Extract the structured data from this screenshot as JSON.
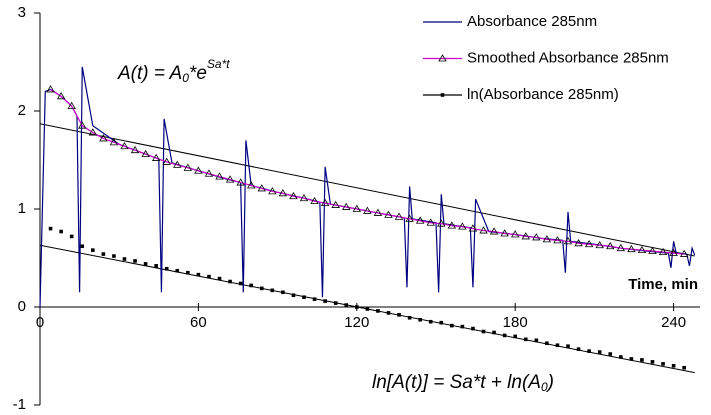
{
  "chart_data": {
    "type": "line",
    "xlabel": "Time, min",
    "xlim": [
      0,
      250
    ],
    "xticks": [
      0,
      60,
      120,
      180,
      240
    ],
    "ylim": [
      -1,
      3
    ],
    "yticks": [
      -1,
      0,
      1,
      2,
      3
    ],
    "legend": "top-right",
    "annotations": [
      {
        "text": "A(t) = A",
        "sub": "0",
        "text2": "*e",
        "sup": "Sa*t"
      },
      {
        "text": "ln[A(t)] = Sa*t + ln(A",
        "sub": "0",
        "text2": ")"
      }
    ],
    "series": [
      {
        "name": "Absorbance 285nm",
        "color": "#000080",
        "marker": "none",
        "x": [
          0,
          2,
          4,
          8,
          12,
          14,
          15,
          16,
          20,
          30,
          40,
          45,
          46,
          47,
          50,
          60,
          70,
          76,
          77,
          78,
          80,
          90,
          100,
          106,
          107,
          108,
          110,
          120,
          130,
          138,
          139,
          140,
          141,
          150,
          151,
          152,
          153,
          160,
          163,
          164,
          165,
          170,
          180,
          190,
          198,
          199,
          200,
          201,
          210,
          220,
          230,
          238,
          239,
          240,
          241,
          245,
          246,
          247,
          248
        ],
        "values": [
          0,
          2.2,
          2.22,
          2.15,
          2.05,
          1.95,
          0.15,
          2.45,
          1.85,
          1.66,
          1.56,
          1.51,
          0.15,
          1.92,
          1.47,
          1.39,
          1.31,
          1.27,
          0.15,
          1.7,
          1.24,
          1.17,
          1.11,
          1.07,
          0.1,
          1.43,
          1.05,
          1.0,
          0.95,
          0.91,
          0.2,
          1.23,
          0.9,
          0.86,
          0.15,
          1.15,
          0.85,
          0.82,
          0.81,
          0.2,
          1.1,
          0.77,
          0.74,
          0.7,
          0.68,
          0.35,
          0.97,
          0.67,
          0.64,
          0.6,
          0.57,
          0.55,
          0.4,
          0.67,
          0.55,
          0.54,
          0.42,
          0.6,
          0.53
        ]
      },
      {
        "name": "Smoothed Absorbance 285nm",
        "color": "#cc00cc",
        "marker": "triangle",
        "x": [
          4,
          8,
          12,
          16,
          20,
          24,
          28,
          32,
          36,
          40,
          44,
          48,
          52,
          56,
          60,
          64,
          68,
          72,
          76,
          80,
          84,
          88,
          92,
          96,
          100,
          104,
          108,
          112,
          116,
          120,
          124,
          128,
          132,
          136,
          140,
          144,
          148,
          152,
          156,
          160,
          164,
          168,
          172,
          176,
          180,
          184,
          188,
          192,
          196,
          200,
          204,
          208,
          212,
          216,
          220,
          224,
          228,
          232,
          236,
          240,
          244
        ],
        "values": [
          2.22,
          2.15,
          2.05,
          1.85,
          1.78,
          1.72,
          1.68,
          1.64,
          1.6,
          1.56,
          1.52,
          1.48,
          1.45,
          1.42,
          1.39,
          1.36,
          1.33,
          1.3,
          1.27,
          1.24,
          1.21,
          1.18,
          1.16,
          1.13,
          1.11,
          1.08,
          1.06,
          1.04,
          1.02,
          1.0,
          0.98,
          0.96,
          0.94,
          0.92,
          0.9,
          0.88,
          0.86,
          0.85,
          0.83,
          0.82,
          0.8,
          0.78,
          0.77,
          0.75,
          0.74,
          0.72,
          0.71,
          0.69,
          0.68,
          0.67,
          0.65,
          0.64,
          0.63,
          0.62,
          0.6,
          0.59,
          0.58,
          0.57,
          0.56,
          0.55,
          0.54
        ]
      },
      {
        "name": "ln(Absorbance 285nm)",
        "color": "#000000",
        "marker": "square",
        "x": [
          4,
          8,
          12,
          16,
          20,
          24,
          28,
          32,
          36,
          40,
          44,
          48,
          52,
          56,
          60,
          64,
          68,
          72,
          76,
          80,
          84,
          88,
          92,
          96,
          100,
          104,
          108,
          112,
          116,
          120,
          124,
          128,
          132,
          136,
          140,
          144,
          148,
          152,
          156,
          160,
          164,
          168,
          172,
          176,
          180,
          184,
          188,
          192,
          196,
          200,
          204,
          208,
          212,
          216,
          220,
          224,
          228,
          232,
          236,
          240,
          244
        ],
        "values": [
          0.8,
          0.77,
          0.72,
          0.62,
          0.58,
          0.54,
          0.52,
          0.49,
          0.47,
          0.44,
          0.42,
          0.39,
          0.37,
          0.35,
          0.33,
          0.31,
          0.29,
          0.26,
          0.24,
          0.22,
          0.19,
          0.17,
          0.15,
          0.12,
          0.1,
          0.08,
          0.06,
          0.04,
          0.02,
          0,
          -0.02,
          -0.04,
          -0.06,
          -0.08,
          -0.11,
          -0.13,
          -0.15,
          -0.16,
          -0.19,
          -0.2,
          -0.22,
          -0.25,
          -0.26,
          -0.29,
          -0.3,
          -0.33,
          -0.34,
          -0.37,
          -0.39,
          -0.4,
          -0.43,
          -0.45,
          -0.46,
          -0.48,
          -0.51,
          -0.53,
          -0.54,
          -0.56,
          -0.58,
          -0.6,
          -0.62
        ]
      }
    ],
    "fits": [
      {
        "color": "#000000",
        "x": [
          0,
          248
        ],
        "values": [
          1.87,
          0.52
        ]
      },
      {
        "color": "#000000",
        "x": [
          0,
          248
        ],
        "values": [
          0.63,
          -0.67
        ]
      }
    ]
  }
}
